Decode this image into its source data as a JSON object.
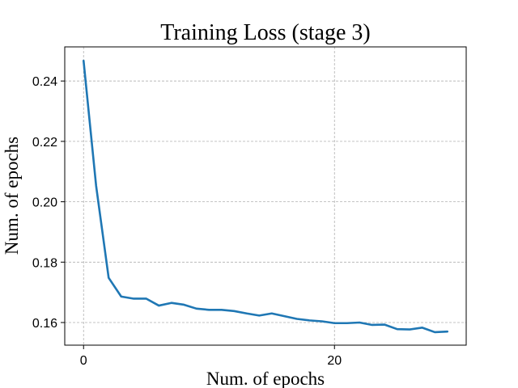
{
  "chart_data": {
    "type": "line",
    "title": "Training Loss (stage 3)",
    "xlabel": "Num. of epochs",
    "ylabel": "Num. of epochs",
    "xlim": [
      -1.5,
      30.5
    ],
    "ylim": [
      0.1525,
      0.2513
    ],
    "xticks": [
      0,
      20
    ],
    "xtick_labels": [
      "0",
      "20"
    ],
    "yticks": [
      0.16,
      0.18,
      0.2,
      0.22,
      0.24
    ],
    "ytick_labels": [
      "0.16",
      "0.18",
      "0.20",
      "0.22",
      "0.24"
    ],
    "grid": true,
    "series": [
      {
        "color": "#1f77b4",
        "x": [
          0,
          1,
          2,
          3,
          4,
          5,
          6,
          7,
          8,
          9,
          10,
          11,
          12,
          13,
          14,
          15,
          16,
          17,
          18,
          19,
          20,
          21,
          22,
          23,
          24,
          25,
          26,
          27,
          28,
          29
        ],
        "y": [
          0.2467,
          0.2053,
          0.1748,
          0.1686,
          0.1679,
          0.1679,
          0.1656,
          0.1665,
          0.1659,
          0.1646,
          0.1642,
          0.1642,
          0.1638,
          0.163,
          0.1623,
          0.163,
          0.1621,
          0.1612,
          0.1607,
          0.1604,
          0.1598,
          0.1598,
          0.16,
          0.1592,
          0.1593,
          0.1578,
          0.1577,
          0.1583,
          0.1568,
          0.157
        ]
      }
    ]
  }
}
